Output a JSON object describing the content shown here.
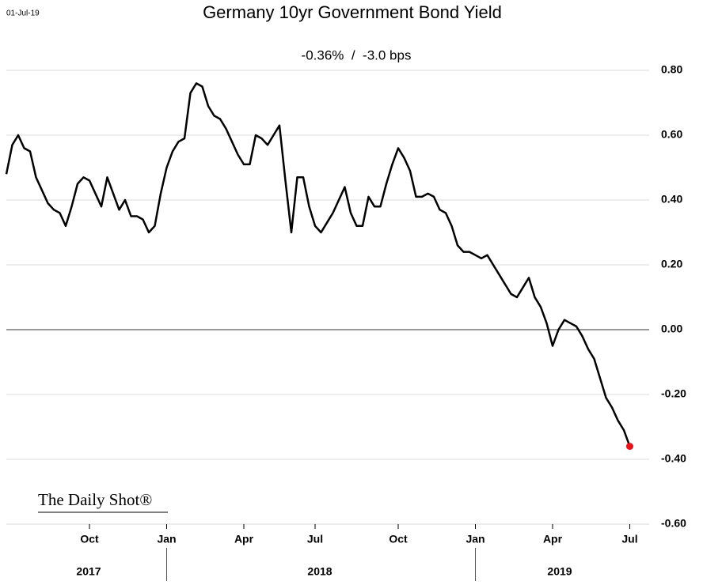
{
  "chart_data": {
    "type": "line",
    "date_stamp": "01-Jul-19",
    "title": "Germany 10yr Government Bond Yield",
    "subtitle": "-0.36%  /  -3.0 bps",
    "watermark": "The Daily Shot®",
    "categories": [
      null,
      null,
      null,
      null,
      null,
      null,
      null,
      null,
      null,
      null,
      null,
      null,
      null,
      null,
      "Oct",
      null,
      null,
      null,
      null,
      null,
      null,
      null,
      null,
      null,
      null,
      null,
      null,
      "Jan",
      null,
      null,
      null,
      null,
      null,
      null,
      null,
      null,
      null,
      null,
      null,
      null,
      "Apr",
      null,
      null,
      null,
      null,
      null,
      null,
      null,
      null,
      null,
      null,
      null,
      "Jul",
      null,
      null,
      null,
      null,
      null,
      null,
      null,
      null,
      null,
      null,
      null,
      null,
      null,
      "Oct",
      null,
      null,
      null,
      null,
      null,
      null,
      null,
      null,
      null,
      null,
      null,
      null,
      "Jan",
      null,
      null,
      null,
      null,
      null,
      null,
      null,
      null,
      null,
      null,
      null,
      null,
      "Apr",
      null,
      null,
      null,
      null,
      null,
      null,
      null,
      null,
      null,
      null,
      null,
      null,
      "Jul"
    ],
    "year_labels": [
      "2017",
      "2018",
      "2019"
    ],
    "series": [
      {
        "name": "Germany 10yr",
        "color": "#000000",
        "values": [
          0.48,
          0.57,
          0.6,
          0.56,
          0.55,
          0.47,
          0.43,
          0.39,
          0.37,
          0.36,
          0.32,
          0.38,
          0.45,
          0.47,
          0.46,
          0.42,
          0.38,
          0.47,
          0.42,
          0.37,
          0.4,
          0.35,
          0.35,
          0.34,
          0.3,
          0.32,
          0.42,
          0.5,
          0.55,
          0.58,
          0.59,
          0.73,
          0.76,
          0.75,
          0.69,
          0.66,
          0.65,
          0.62,
          0.58,
          0.54,
          0.51,
          0.51,
          0.6,
          0.59,
          0.57,
          0.6,
          0.63,
          0.46,
          0.3,
          0.47,
          0.47,
          0.38,
          0.32,
          0.3,
          0.33,
          0.36,
          0.4,
          0.44,
          0.36,
          0.32,
          0.32,
          0.41,
          0.38,
          0.38,
          0.45,
          0.51,
          0.56,
          0.53,
          0.49,
          0.41,
          0.41,
          0.42,
          0.41,
          0.37,
          0.36,
          0.32,
          0.26,
          0.24,
          0.24,
          0.23,
          0.22,
          0.23,
          0.2,
          0.17,
          0.14,
          0.11,
          0.1,
          0.13,
          0.16,
          0.1,
          0.07,
          0.02,
          -0.05,
          0.0,
          0.03,
          0.02,
          0.01,
          -0.02,
          -0.06,
          -0.09,
          -0.15,
          -0.21,
          -0.24,
          -0.28,
          -0.31,
          -0.36
        ]
      }
    ],
    "end_marker_color": "#e8141b",
    "ylim": [
      -0.6,
      0.8
    ],
    "yticks": [
      {
        "value": 0.8,
        "label": "0.80"
      },
      {
        "value": 0.6,
        "label": "0.60"
      },
      {
        "value": 0.4,
        "label": "0.40"
      },
      {
        "value": 0.2,
        "label": "0.20"
      },
      {
        "value": 0,
        "label": "0.00"
      },
      {
        "value": -0.2,
        "label": "-0.20"
      },
      {
        "value": -0.4,
        "label": "-0.40"
      },
      {
        "value": -0.6,
        "label": "-0.60"
      }
    ],
    "grid": true
  }
}
